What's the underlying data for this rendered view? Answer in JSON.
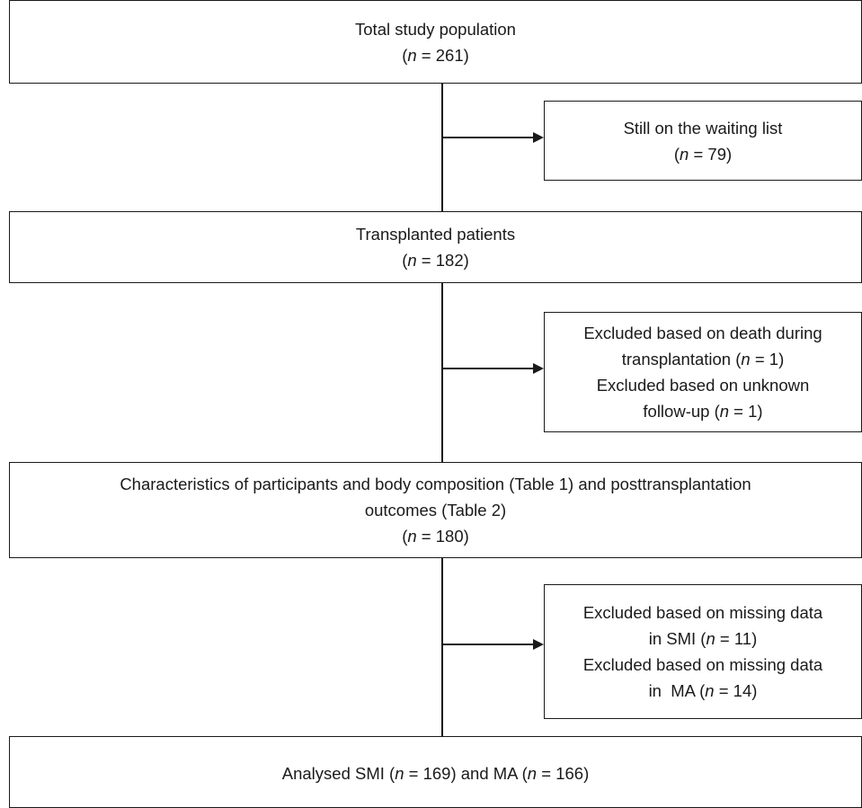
{
  "flow": {
    "total": {
      "label": "Total study population",
      "n": "261"
    },
    "waiting": {
      "label": "Still on the waiting list",
      "n": "79"
    },
    "transplanted": {
      "label": "Transplanted patients",
      "n": "182"
    },
    "excluded1": {
      "line1": "Excluded based on death during",
      "line2_prefix": "transplantation (",
      "line2_n": "1",
      "line2_suffix": ")",
      "line3": "Excluded based on unknown",
      "line4_prefix": "follow-up (",
      "line4_n": "1",
      "line4_suffix": ")"
    },
    "characteristics": {
      "line1": "Characteristics of participants and body composition (Table 1) and posttransplantation",
      "line2": "outcomes (Table 2)",
      "n": "180"
    },
    "excluded2": {
      "line1": "Excluded based on missing data",
      "line2_prefix": "in SMI (",
      "line2_n": "11",
      "line2_suffix": ")",
      "line3": "Excluded based on missing data",
      "line4_prefix": "in  MA (",
      "line4_n": "14",
      "line4_suffix": ")"
    },
    "analysed": {
      "prefix": "Analysed SMI (",
      "n_smi": "169",
      "middle": ") and MA (",
      "n_ma": "166",
      "suffix": ")"
    },
    "n_symbol": "n",
    "equals": " = "
  }
}
